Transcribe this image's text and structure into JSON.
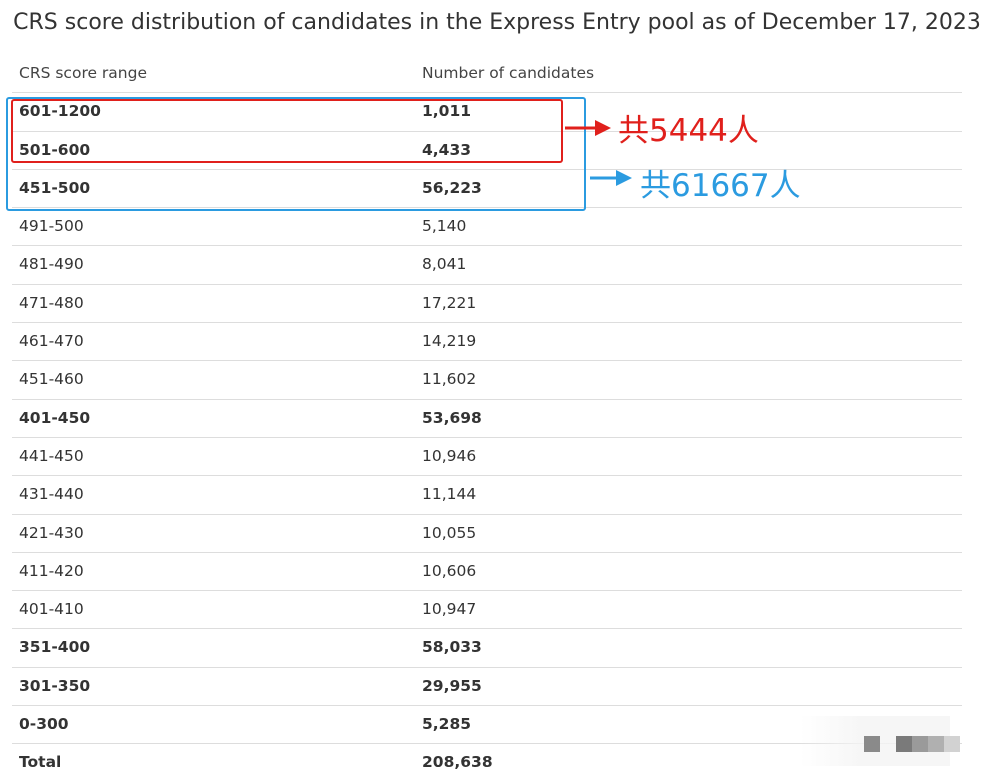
{
  "title": "CRS score distribution of candidates in the Express Entry pool as of December 17, 2023",
  "table": {
    "headers": [
      "CRS score range",
      "Number of candidates"
    ],
    "rows": [
      {
        "range": "601-1200",
        "count": "1,011",
        "bold": true
      },
      {
        "range": "501-600",
        "count": "4,433",
        "bold": true
      },
      {
        "range": "451-500",
        "count": "56,223",
        "bold": true
      },
      {
        "range": "491-500",
        "count": "5,140",
        "bold": false
      },
      {
        "range": "481-490",
        "count": "8,041",
        "bold": false
      },
      {
        "range": "471-480",
        "count": "17,221",
        "bold": false
      },
      {
        "range": "461-470",
        "count": "14,219",
        "bold": false
      },
      {
        "range": "451-460",
        "count": "11,602",
        "bold": false
      },
      {
        "range": "401-450",
        "count": "53,698",
        "bold": true
      },
      {
        "range": "441-450",
        "count": "10,946",
        "bold": false
      },
      {
        "range": "431-440",
        "count": "11,144",
        "bold": false
      },
      {
        "range": "421-430",
        "count": "10,055",
        "bold": false
      },
      {
        "range": "411-420",
        "count": "10,606",
        "bold": false
      },
      {
        "range": "401-410",
        "count": "10,947",
        "bold": false
      },
      {
        "range": "351-400",
        "count": "58,033",
        "bold": true
      },
      {
        "range": "301-350",
        "count": "29,955",
        "bold": true
      },
      {
        "range": "0-300",
        "count": "5,285",
        "bold": true
      }
    ],
    "total": {
      "range": "Total",
      "count": "208,638"
    }
  },
  "annotations": {
    "red": {
      "text": "共5444人",
      "color": "#e0201c"
    },
    "blue": {
      "text": "共61667人",
      "color": "#2b9be0"
    }
  }
}
